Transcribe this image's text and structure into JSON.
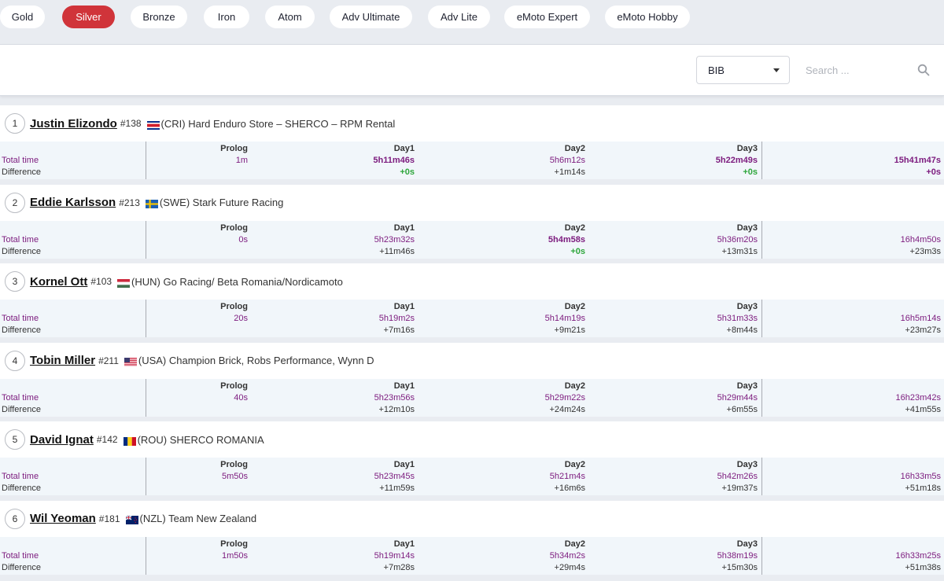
{
  "categories": {
    "items": [
      {
        "label": "Gold",
        "active": false
      },
      {
        "label": "Silver",
        "active": true
      },
      {
        "label": "Bronze",
        "active": false
      },
      {
        "label": "Iron",
        "active": false
      },
      {
        "label": "Atom",
        "active": false
      },
      {
        "label": "Adv Ultimate",
        "active": false
      },
      {
        "label": "Adv Lite",
        "active": false
      },
      {
        "label": "eMoto Expert",
        "active": false
      },
      {
        "label": "eMoto Hobby",
        "active": false
      }
    ]
  },
  "filters": {
    "sort_value": "BIB",
    "search_placeholder": "Search ..."
  },
  "labels": {
    "total_time": "Total time",
    "difference": "Difference"
  },
  "columns": [
    "Prolog",
    "Day1",
    "Day2",
    "Day3"
  ],
  "colors": {
    "accent": "#d0343a",
    "time": "#7c1b7e",
    "best_diff": "#2ea63c",
    "row_bg": "#f1f6fa"
  },
  "riders": [
    {
      "rank": "1",
      "name": "Justin Elizondo",
      "bib": "#138",
      "flag": "flag-cri-icon",
      "team": "(CRI) Hard Enduro Store – SHERCO – RPM Rental",
      "times": [
        "1m",
        "5h11m46s",
        "5h6m12s",
        "5h22m49s"
      ],
      "diffs": [
        "",
        "+0s",
        "+1m14s",
        "+0s"
      ],
      "best": [
        false,
        true,
        false,
        true
      ],
      "total": "15h41m47s",
      "total_diff": "+0s"
    },
    {
      "rank": "2",
      "name": "Eddie Karlsson",
      "bib": "#213",
      "flag": "flag-swe-icon",
      "team": "(SWE) Stark Future Racing",
      "times": [
        "0s",
        "5h23m32s",
        "5h4m58s",
        "5h36m20s"
      ],
      "diffs": [
        "",
        "+11m46s",
        "+0s",
        "+13m31s"
      ],
      "best": [
        false,
        false,
        true,
        false
      ],
      "total": "16h4m50s",
      "total_diff": "+23m3s"
    },
    {
      "rank": "3",
      "name": "Kornel Ott",
      "bib": "#103",
      "flag": "flag-hun-icon",
      "team": "(HUN) Go Racing/ Beta Romania/Nordicamoto",
      "times": [
        "20s",
        "5h19m2s",
        "5h14m19s",
        "5h31m33s"
      ],
      "diffs": [
        "",
        "+7m16s",
        "+9m21s",
        "+8m44s"
      ],
      "best": [
        false,
        false,
        false,
        false
      ],
      "total": "16h5m14s",
      "total_diff": "+23m27s"
    },
    {
      "rank": "4",
      "name": "Tobin Miller",
      "bib": "#211",
      "flag": "flag-usa-icon",
      "team": "(USA) Champion Brick, Robs Performance, Wynn D",
      "times": [
        "40s",
        "5h23m56s",
        "5h29m22s",
        "5h29m44s"
      ],
      "diffs": [
        "",
        "+12m10s",
        "+24m24s",
        "+6m55s"
      ],
      "best": [
        false,
        false,
        false,
        false
      ],
      "total": "16h23m42s",
      "total_diff": "+41m55s"
    },
    {
      "rank": "5",
      "name": "David Ignat",
      "bib": "#142",
      "flag": "flag-rou-icon",
      "team": "(ROU) SHERCO ROMANIA",
      "times": [
        "5m50s",
        "5h23m45s",
        "5h21m4s",
        "5h42m26s"
      ],
      "diffs": [
        "",
        "+11m59s",
        "+16m6s",
        "+19m37s"
      ],
      "best": [
        false,
        false,
        false,
        false
      ],
      "total": "16h33m5s",
      "total_diff": "+51m18s"
    },
    {
      "rank": "6",
      "name": "Wil Yeoman",
      "bib": "#181",
      "flag": "flag-nzl-icon",
      "team": "(NZL) Team New Zealand",
      "times": [
        "1m50s",
        "5h19m14s",
        "5h34m2s",
        "5h38m19s"
      ],
      "diffs": [
        "",
        "+7m28s",
        "+29m4s",
        "+15m30s"
      ],
      "best": [
        false,
        false,
        false,
        false
      ],
      "total": "16h33m25s",
      "total_diff": "+51m38s"
    }
  ]
}
